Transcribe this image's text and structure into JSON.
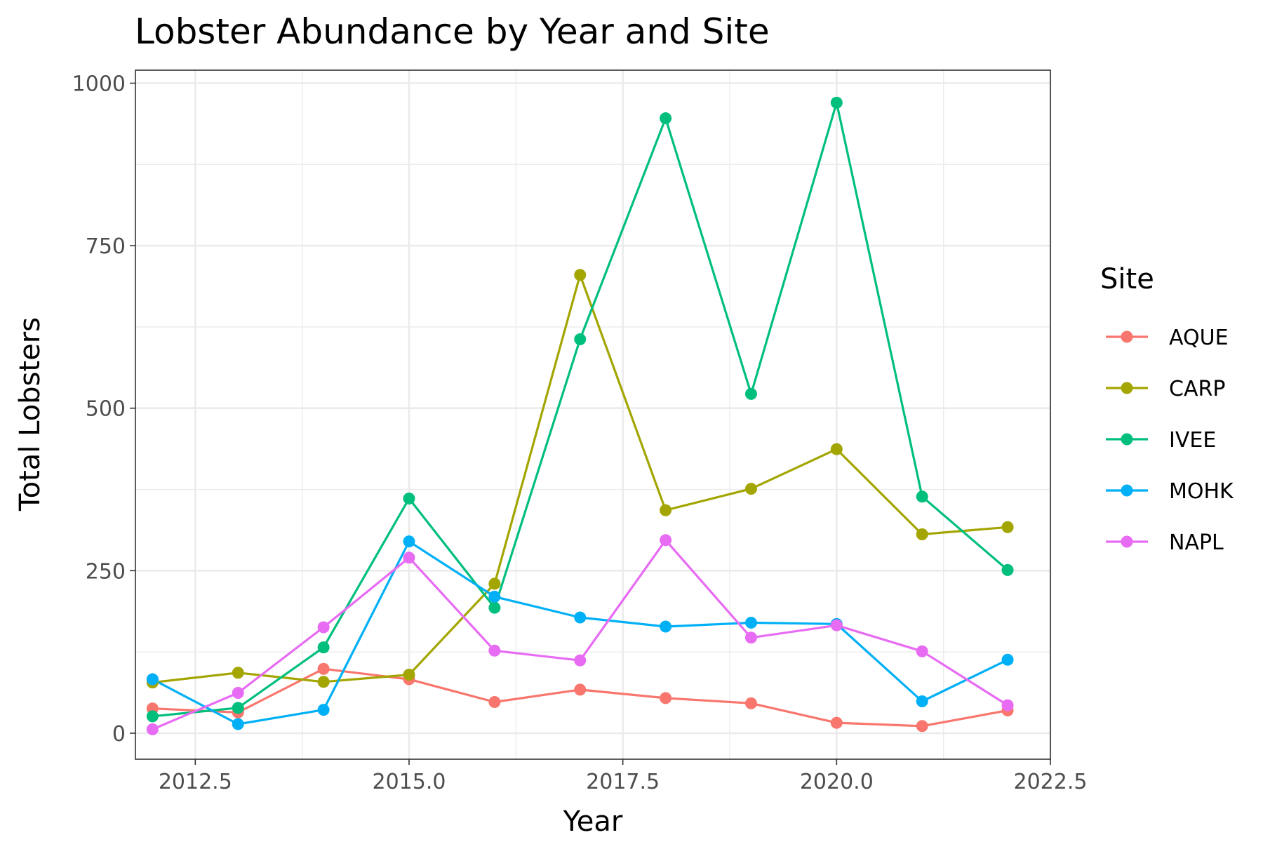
{
  "chart_data": {
    "type": "line",
    "title": "Lobster Abundance by Year and Site",
    "xlabel": "Year",
    "ylabel": "Total Lobsters",
    "xlim": [
      2011.8,
      2022.5
    ],
    "ylim": [
      -40,
      1020
    ],
    "x_ticks": [
      2012.5,
      2015.0,
      2017.5,
      2020.0,
      2022.5
    ],
    "x_tick_labels": [
      "2012.5",
      "2015.0",
      "2017.5",
      "2020.0",
      "2022.5"
    ],
    "y_ticks": [
      0,
      250,
      500,
      750,
      1000
    ],
    "y_tick_labels": [
      "0",
      "250",
      "500",
      "750",
      "1000"
    ],
    "grid": true,
    "legend": {
      "title": "Site",
      "position": "right"
    },
    "x": [
      2012,
      2013,
      2014,
      2015,
      2016,
      2017,
      2018,
      2019,
      2020,
      2021,
      2022
    ],
    "series": [
      {
        "name": "AQUE",
        "color": "#F8766D",
        "values": [
          38,
          32,
          99,
          83,
          48,
          67,
          54,
          46,
          16,
          11,
          35
        ]
      },
      {
        "name": "CARP",
        "color": "#A3A500",
        "values": [
          78,
          93,
          79,
          90,
          230,
          705,
          343,
          376,
          437,
          306,
          317
        ]
      },
      {
        "name": "IVEE",
        "color": "#00BF7D",
        "values": [
          26,
          39,
          132,
          361,
          193,
          606,
          946,
          522,
          970,
          364,
          251
        ]
      },
      {
        "name": "MOHK",
        "color": "#00B0F6",
        "values": [
          83,
          14,
          36,
          295,
          210,
          178,
          164,
          170,
          168,
          49,
          113
        ]
      },
      {
        "name": "NAPL",
        "color": "#E76BF3",
        "values": [
          6,
          62,
          163,
          270,
          127,
          112,
          297,
          147,
          166,
          126,
          43
        ]
      }
    ]
  }
}
